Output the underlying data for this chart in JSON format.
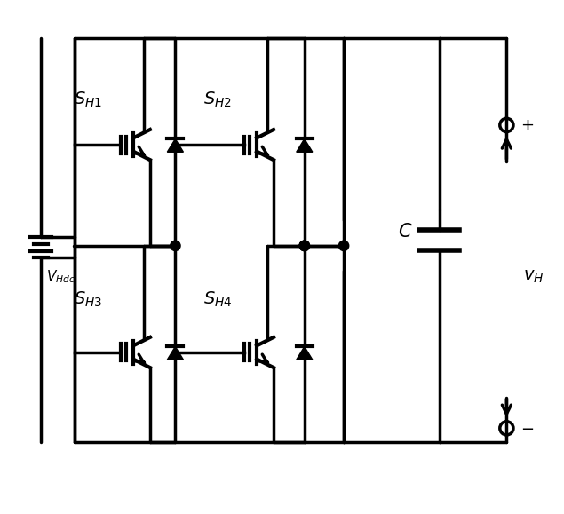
{
  "figsize": [
    6.35,
    5.79
  ],
  "dpi": 100,
  "lw": 2.5,
  "color": "black",
  "bg": "white",
  "title": "H-bridge circuit with S_H1, S_H2, S_H3, S_H4"
}
